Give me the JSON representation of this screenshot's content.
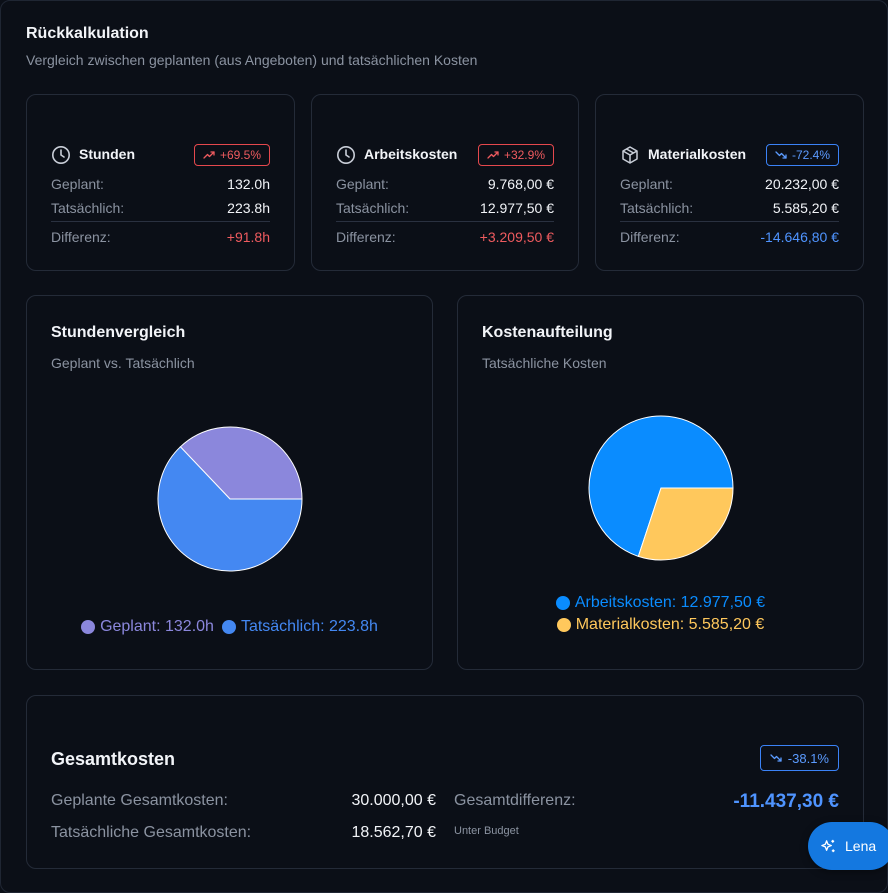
{
  "header": {
    "title": "Rückkalkulation",
    "subtitle": "Vergleich zwischen geplanten (aus Angeboten) und tatsächlichen Kosten"
  },
  "stats": [
    {
      "title": "Stunden",
      "icon": "clock-icon",
      "badge": "+69.5%",
      "trend": "up",
      "planned_label": "Geplant:",
      "planned_value": "132.0h",
      "actual_label": "Tatsächlich:",
      "actual_value": "223.8h",
      "diff_label": "Differenz:",
      "diff_value": "+91.8h"
    },
    {
      "title": "Arbeitskosten",
      "icon": "clock-icon",
      "badge": "+32.9%",
      "trend": "up",
      "planned_label": "Geplant:",
      "planned_value": "9.768,00 €",
      "actual_label": "Tatsächlich:",
      "actual_value": "12.977,50 €",
      "diff_label": "Differenz:",
      "diff_value": "+3.209,50 €"
    },
    {
      "title": "Materialkosten",
      "icon": "package-icon",
      "badge": "-72.4%",
      "trend": "down",
      "planned_label": "Geplant:",
      "planned_value": "20.232,00 €",
      "actual_label": "Tatsächlich:",
      "actual_value": "5.585,20 €",
      "diff_label": "Differenz:",
      "diff_value": "-14.646,80 €"
    }
  ],
  "colors": {
    "planned": "#8b87dc",
    "actual": "#4488f2",
    "labor": "#0a8cff",
    "material": "#ffc85c",
    "up": "#ef5b5f",
    "down": "#4f94ff"
  },
  "chart_data": [
    {
      "type": "pie",
      "title": "Stundenvergleich",
      "subtitle": "Geplant vs. Tatsächlich",
      "slices": [
        {
          "name": "Geplant",
          "value": 132.0,
          "label": "Geplant: 132.0h",
          "color": "#8b87dc"
        },
        {
          "name": "Tatsächlich",
          "value": 223.8,
          "label": "Tatsächlich: 223.8h",
          "color": "#4488f2"
        }
      ],
      "legend": "bottom"
    },
    {
      "type": "pie",
      "title": "Kostenaufteilung",
      "subtitle": "Tatsächliche Kosten",
      "slices": [
        {
          "name": "Arbeitskosten",
          "value": 12977.5,
          "label": "Arbeitskosten: 12.977,50 €",
          "color": "#0a8cff"
        },
        {
          "name": "Materialkosten",
          "value": 5585.2,
          "label": "Materialkosten: 5.585,20 €",
          "color": "#ffc85c"
        }
      ],
      "legend": "bottom"
    }
  ],
  "total": {
    "title": "Gesamtkosten",
    "badge": "-38.1%",
    "planned_label": "Geplante Gesamtkosten:",
    "planned_value": "30.000,00 €",
    "actual_label": "Tatsächliche Gesamtkosten:",
    "actual_value": "18.562,70 €",
    "diff_label": "Gesamtdifferenz:",
    "diff_value": "-11.437,30 €",
    "note": "Unter Budget"
  },
  "assistant": {
    "label": "Lena",
    "icon": "sparkles-icon"
  }
}
